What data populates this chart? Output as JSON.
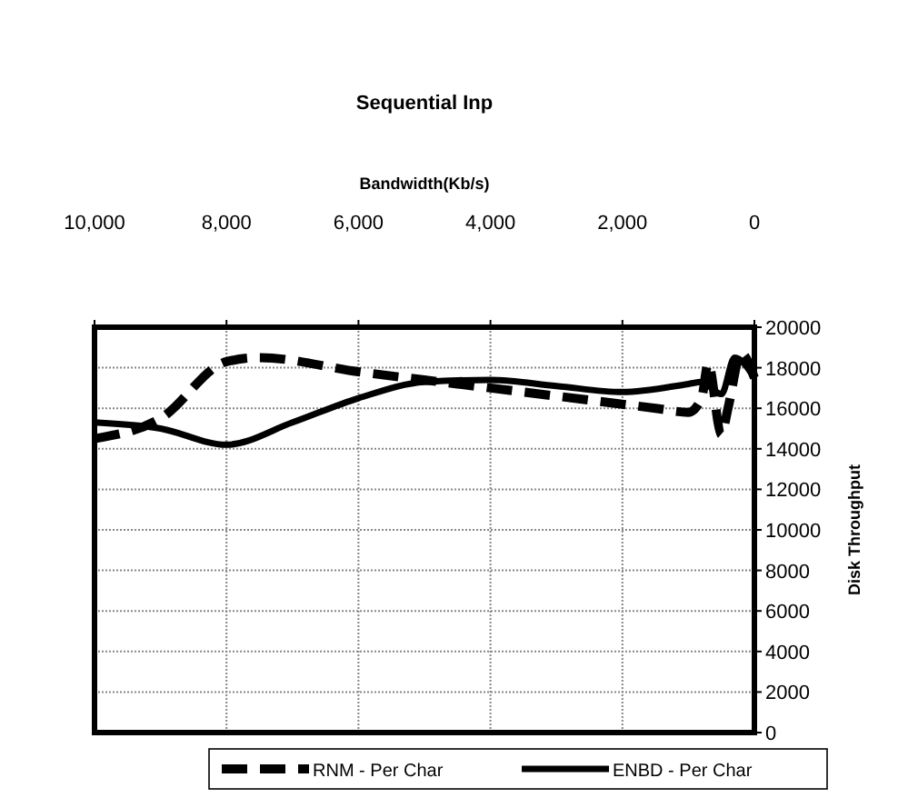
{
  "chart_data": {
    "type": "line",
    "title": "Sequential Inp",
    "xlabel": "Bandwidth(Kb/s)",
    "ylabel": "Disk Throughput",
    "xlim": [
      10000,
      0
    ],
    "xticks": [
      {
        "value": 10000,
        "label": "10,000"
      },
      {
        "value": 8000,
        "label": "8,000"
      },
      {
        "value": 6000,
        "label": "6,000"
      },
      {
        "value": 4000,
        "label": "4,000"
      },
      {
        "value": 2000,
        "label": "2,000"
      },
      0
    ],
    "ylim": [
      0,
      20000
    ],
    "yticks": [
      0,
      2000,
      4000,
      6000,
      8000,
      10000,
      12000,
      14000,
      16000,
      18000,
      20000
    ],
    "grid": true,
    "legend": "bottom",
    "series": [
      {
        "name": "RNM - Per Char",
        "color": "#000000",
        "line_style": "dashed",
        "x": [
          10000,
          9000,
          8000,
          7500,
          6000,
          4500,
          3000,
          1500,
          1000,
          800,
          700,
          500,
          400,
          200,
          0
        ],
        "values": [
          14500,
          15500,
          18300,
          18500,
          17800,
          17200,
          16600,
          16000,
          15800,
          16500,
          18200,
          14700,
          16000,
          18700,
          17500
        ]
      },
      {
        "name": "ENBD - Per Char",
        "color": "#000000",
        "line_style": "solid",
        "x": [
          10000,
          9000,
          8000,
          7000,
          6000,
          5000,
          4000,
          3000,
          2000,
          1000,
          800,
          500,
          300,
          0
        ],
        "values": [
          15300,
          15000,
          14200,
          15300,
          16500,
          17300,
          17400,
          17100,
          16800,
          17200,
          17300,
          16700,
          18500,
          17500
        ]
      }
    ]
  }
}
